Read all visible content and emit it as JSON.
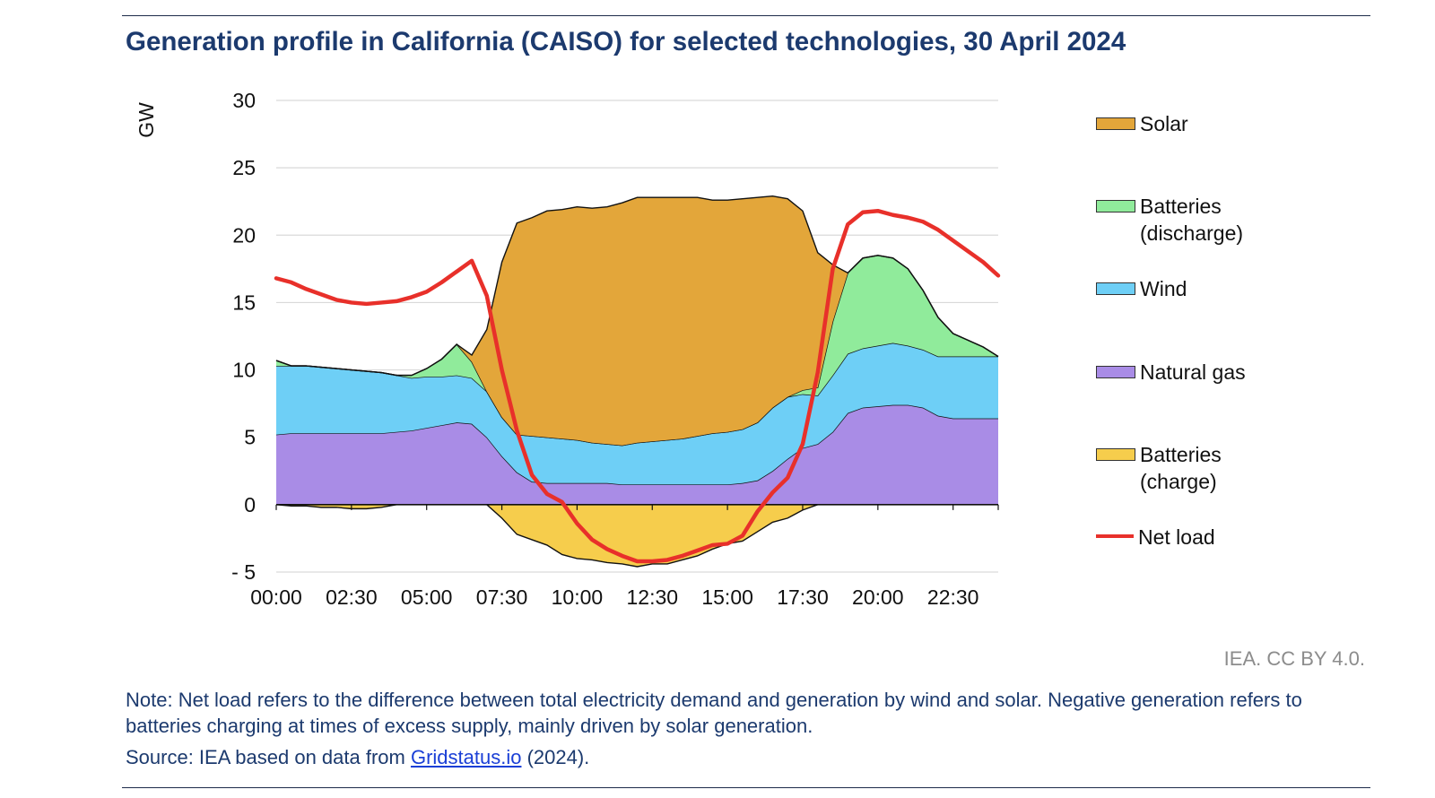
{
  "title": "Generation profile in California (CAISO) for selected technologies, 30 April 2024",
  "credit": "IEA. CC BY 4.0.",
  "note": "Note: Net load refers to the difference between total electricity demand and generation by wind and solar. Negative generation refers to batteries charging at times of excess supply, mainly driven by solar generation.",
  "source": {
    "prefix": "Source: IEA based on data from ",
    "link": "Gridstatus.io",
    "suffix": " (2024)."
  },
  "legend": [
    {
      "key": "solar",
      "label": "Solar",
      "color": "#e3a63a"
    },
    {
      "key": "batt_dis",
      "label": "Batteries\n(discharge)",
      "color": "#90eb9b"
    },
    {
      "key": "wind",
      "label": "Wind",
      "color": "#6ecff6"
    },
    {
      "key": "gas",
      "label": "Natural gas",
      "color": "#a98ce6"
    },
    {
      "key": "batt_chg",
      "label": "Batteries\n(charge)",
      "color": "#f6cd4c"
    },
    {
      "key": "net",
      "label": "Net load",
      "color": "#e8302a"
    }
  ],
  "chart_data": {
    "type": "area",
    "title": "Generation profile in California (CAISO) for selected technologies, 30 April 2024",
    "ylabel": "GW",
    "xlabel": "",
    "ylim": [
      -5,
      30
    ],
    "xlim": [
      0,
      24
    ],
    "yticks": [
      30,
      25,
      20,
      15,
      10,
      5,
      0,
      -5
    ],
    "ytick_labels": [
      "30",
      "25",
      "20",
      "15",
      "10",
      "5",
      "0",
      "- 5"
    ],
    "xticks": [
      0,
      2.5,
      5,
      7.5,
      10,
      12.5,
      15,
      17.5,
      20,
      22.5
    ],
    "xtick_labels": [
      "00:00",
      "02:30",
      "05:00",
      "07:30",
      "10:00",
      "12:30",
      "15:00",
      "17:30",
      "20:00",
      "22:30"
    ],
    "grid": true,
    "legend_position": "right",
    "x": [
      0,
      0.5,
      1,
      1.5,
      2,
      2.5,
      3,
      3.5,
      4,
      4.5,
      5,
      5.5,
      6,
      6.5,
      7,
      7.5,
      8,
      8.5,
      9,
      9.5,
      10,
      10.5,
      11,
      11.5,
      12,
      12.5,
      13,
      13.5,
      14,
      14.5,
      15,
      15.5,
      16,
      16.5,
      17,
      17.5,
      18,
      18.5,
      19,
      19.5,
      20,
      20.5,
      21,
      21.5,
      22,
      22.5,
      23,
      23.5,
      24
    ],
    "series": [
      {
        "name": "Natural gas",
        "stack": "positive",
        "values": [
          5.2,
          5.3,
          5.3,
          5.3,
          5.3,
          5.3,
          5.3,
          5.3,
          5.4,
          5.5,
          5.7,
          5.9,
          6.1,
          6.0,
          5.0,
          3.6,
          2.4,
          1.7,
          1.6,
          1.6,
          1.6,
          1.6,
          1.6,
          1.5,
          1.5,
          1.5,
          1.5,
          1.5,
          1.5,
          1.5,
          1.5,
          1.6,
          1.8,
          2.5,
          3.4,
          4.2,
          4.5,
          5.4,
          6.8,
          7.2,
          7.3,
          7.4,
          7.4,
          7.2,
          6.6,
          6.4,
          6.4,
          6.4,
          6.4
        ]
      },
      {
        "name": "Wind",
        "stack": "positive",
        "values": [
          5.1,
          5.0,
          5.0,
          4.9,
          4.8,
          4.7,
          4.6,
          4.5,
          4.2,
          3.9,
          3.8,
          3.6,
          3.5,
          3.4,
          3.4,
          2.9,
          2.8,
          3.4,
          3.4,
          3.3,
          3.2,
          3.0,
          2.9,
          2.9,
          3.1,
          3.2,
          3.3,
          3.4,
          3.6,
          3.8,
          3.9,
          4.0,
          4.3,
          4.7,
          4.6,
          4.0,
          3.6,
          4.2,
          4.4,
          4.4,
          4.5,
          4.6,
          4.4,
          4.3,
          4.4,
          4.6,
          4.6,
          4.6,
          4.6
        ]
      },
      {
        "name": "Batteries (discharge)",
        "stack": "positive",
        "values": [
          0.4,
          0.0,
          0.0,
          0.0,
          0.0,
          0.0,
          0.0,
          0.0,
          0.0,
          0.2,
          0.6,
          1.3,
          2.3,
          1.2,
          0.0,
          0.0,
          0.0,
          0.0,
          0.0,
          0.0,
          0.0,
          0.0,
          0.0,
          0.0,
          0.0,
          0.0,
          0.0,
          0.0,
          0.0,
          0.0,
          0.0,
          0.0,
          0.0,
          0.0,
          0.0,
          0.3,
          0.6,
          4.0,
          6.0,
          6.7,
          6.7,
          6.3,
          5.7,
          4.4,
          2.9,
          1.7,
          1.2,
          0.7,
          0.0
        ]
      },
      {
        "name": "Solar",
        "stack": "positive",
        "values": [
          0,
          0,
          0,
          0,
          0,
          0,
          0,
          0,
          0,
          0,
          0,
          0,
          0,
          0.5,
          4.6,
          11.5,
          15.7,
          16.2,
          16.8,
          17.0,
          17.3,
          17.4,
          17.6,
          18.0,
          18.2,
          18.1,
          18.0,
          17.9,
          17.7,
          17.3,
          17.2,
          17.1,
          16.7,
          15.7,
          14.7,
          13.3,
          10.0,
          4.2,
          0,
          0,
          0,
          0,
          0,
          0,
          0,
          0,
          0,
          0,
          0
        ]
      },
      {
        "name": "Batteries (charge)",
        "stack": "negative",
        "values": [
          0,
          -0.1,
          -0.1,
          -0.2,
          -0.2,
          -0.3,
          -0.3,
          -0.2,
          0,
          0,
          0,
          0,
          0,
          0,
          0,
          -1.0,
          -2.2,
          -2.6,
          -3.0,
          -3.7,
          -4.0,
          -4.1,
          -4.3,
          -4.4,
          -4.6,
          -4.4,
          -4.4,
          -4.1,
          -3.8,
          -3.3,
          -2.9,
          -2.7,
          -2.0,
          -1.3,
          -1.0,
          -0.4,
          0,
          0,
          0,
          0,
          0,
          0,
          0,
          0,
          0,
          0,
          0,
          0,
          0
        ]
      },
      {
        "name": "Net load",
        "kind": "line",
        "values": [
          16.8,
          16.5,
          16.0,
          15.6,
          15.2,
          15.0,
          14.9,
          15.0,
          15.1,
          15.4,
          15.8,
          16.5,
          17.3,
          18.1,
          15.5,
          10.0,
          5.5,
          2.2,
          0.8,
          0.2,
          -1.4,
          -2.6,
          -3.3,
          -3.8,
          -4.2,
          -4.2,
          -4.1,
          -3.8,
          -3.4,
          -3.0,
          -2.9,
          -2.3,
          -0.5,
          0.9,
          2.0,
          4.5,
          9.8,
          17.5,
          20.8,
          21.7,
          21.8,
          21.5,
          21.3,
          21.0,
          20.4,
          19.6,
          18.8,
          18.0,
          17.0
        ]
      }
    ]
  }
}
